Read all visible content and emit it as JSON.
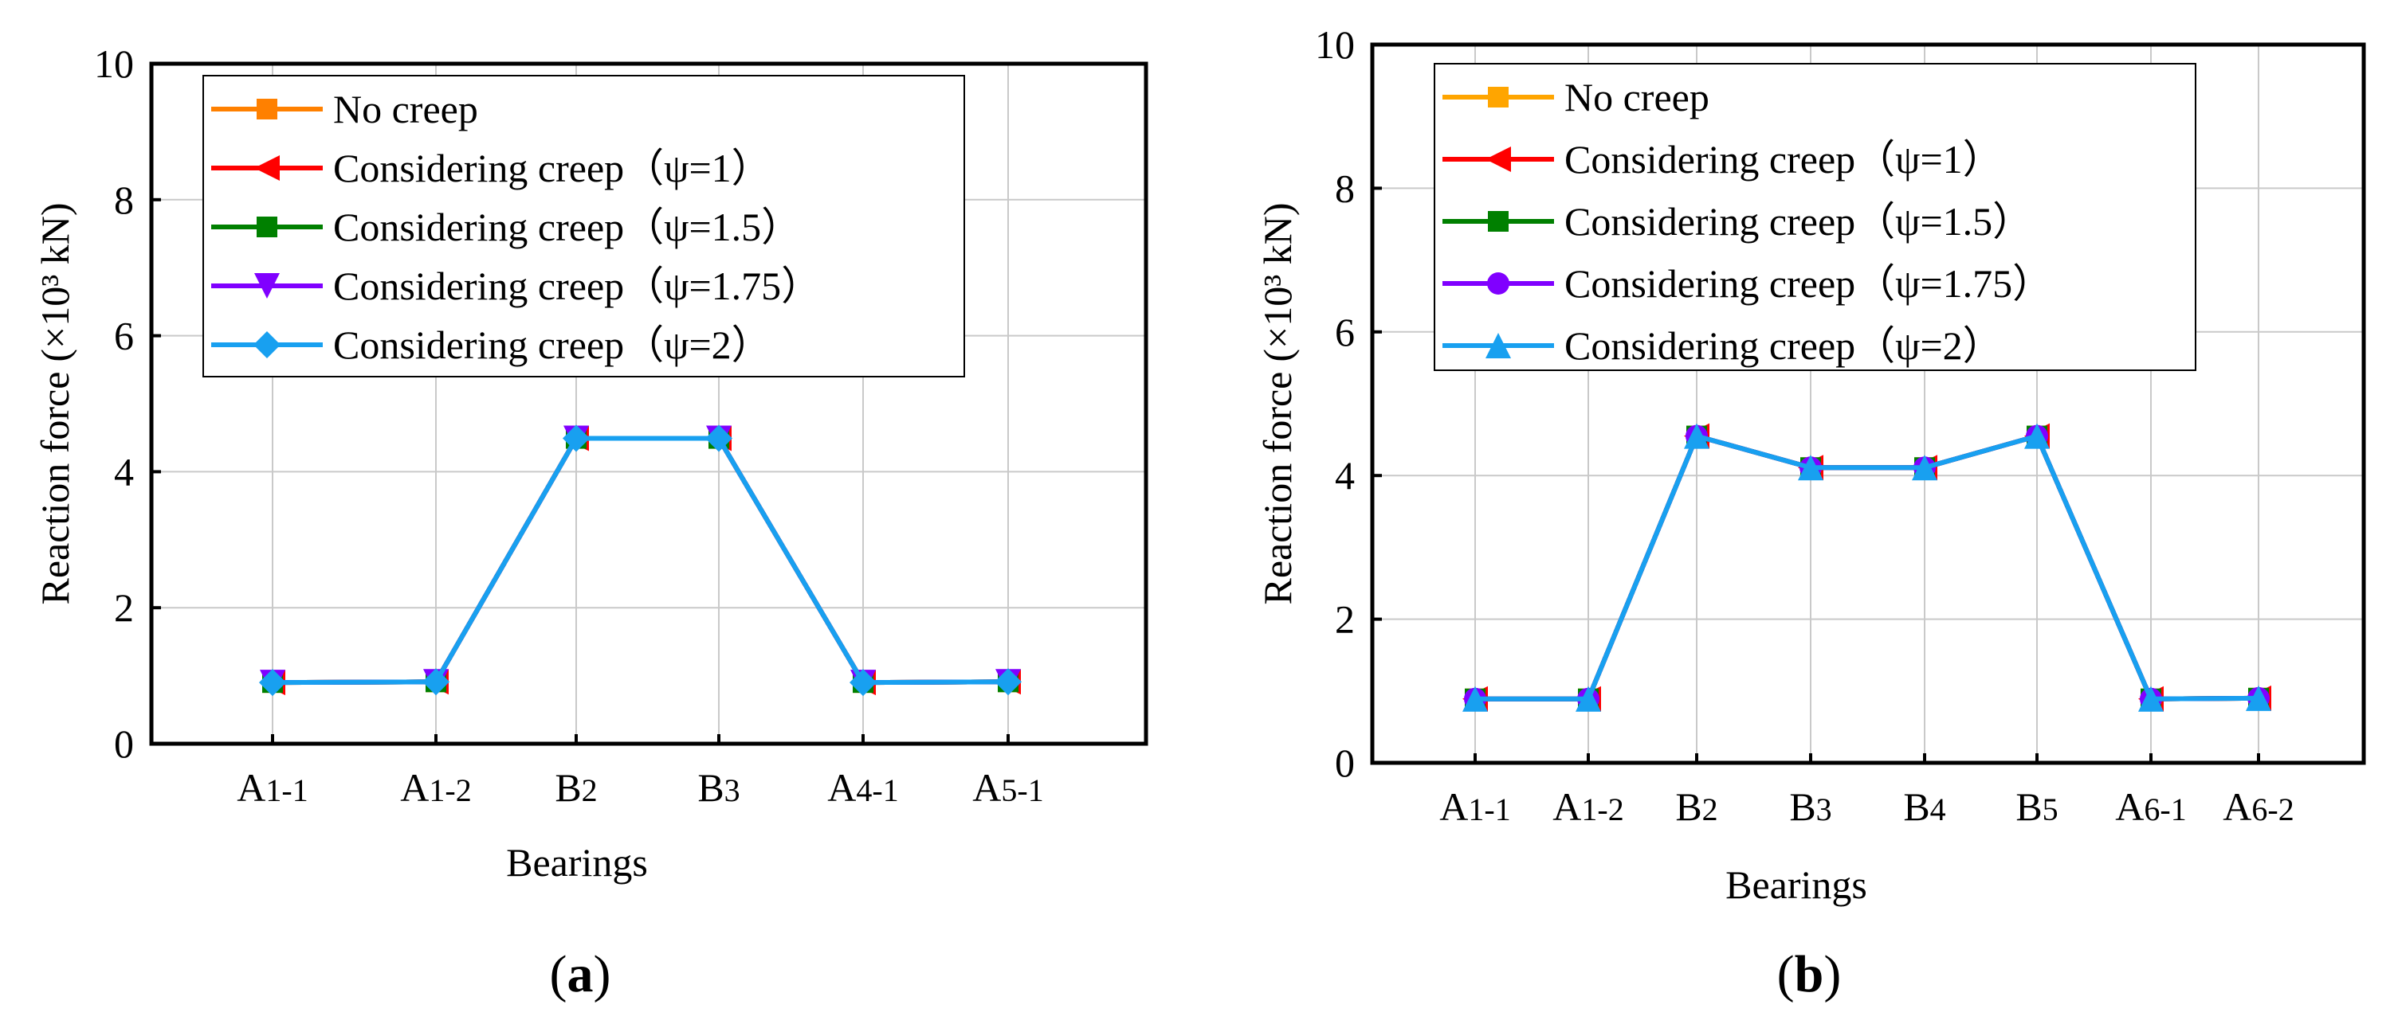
{
  "chart_data": [
    {
      "type": "line",
      "panel_label": "a",
      "xlabel": "Bearings",
      "ylabel": "Reaction force",
      "ylabel_unit": "(×10³ kN)",
      "ylim": [
        0,
        10
      ],
      "yticks": [
        0,
        2,
        4,
        6,
        8,
        10
      ],
      "grid": true,
      "legend_position": "top-left",
      "categories": [
        {
          "base": "A",
          "sub": "1-1"
        },
        {
          "base": "A",
          "sub": "1-2"
        },
        {
          "base": "B",
          "sub": "2"
        },
        {
          "base": "B",
          "sub": "3"
        },
        {
          "base": "A",
          "sub": "4-1"
        },
        {
          "base": "A",
          "sub": "5-1"
        }
      ],
      "series": [
        {
          "name": "No creep",
          "color": "#ff8000",
          "marker": "square",
          "values": [
            0.9,
            0.91,
            4.49,
            4.49,
            0.9,
            0.91
          ]
        },
        {
          "name": "Considering creep（ψ=1）",
          "color": "#ff0000",
          "marker": "triangle-left",
          "values": [
            0.9,
            0.91,
            4.49,
            4.49,
            0.9,
            0.91
          ]
        },
        {
          "name": "Considering creep（ψ=1.5）",
          "color": "#008000",
          "marker": "square",
          "values": [
            0.9,
            0.91,
            4.49,
            4.49,
            0.9,
            0.91
          ]
        },
        {
          "name": "Considering creep（ψ=1.75）",
          "color": "#8000ff",
          "marker": "triangle-down",
          "values": [
            0.9,
            0.91,
            4.49,
            4.49,
            0.9,
            0.91
          ]
        },
        {
          "name": "Considering creep（ψ=2）",
          "color": "#18a0f0",
          "marker": "diamond",
          "values": [
            0.9,
            0.91,
            4.49,
            4.49,
            0.9,
            0.91
          ]
        }
      ]
    },
    {
      "type": "line",
      "panel_label": "b",
      "xlabel": "Bearings",
      "ylabel": "Reaction force",
      "ylabel_unit": "(×10³ kN)",
      "ylim": [
        0,
        10
      ],
      "yticks": [
        0,
        2,
        4,
        6,
        8,
        10
      ],
      "grid": true,
      "legend_position": "top-left",
      "categories": [
        {
          "base": "A",
          "sub": "1-1"
        },
        {
          "base": "A",
          "sub": "1-2"
        },
        {
          "base": "B",
          "sub": "2"
        },
        {
          "base": "B",
          "sub": "3"
        },
        {
          "base": "B",
          "sub": "4"
        },
        {
          "base": "B",
          "sub": "5"
        },
        {
          "base": "A",
          "sub": "6-1"
        },
        {
          "base": "A",
          "sub": "6-2"
        }
      ],
      "series": [
        {
          "name": "No creep",
          "color": "#ffa500",
          "marker": "square",
          "values": [
            0.89,
            0.89,
            4.55,
            4.11,
            4.11,
            4.55,
            0.89,
            0.9
          ]
        },
        {
          "name": "Considering creep（ψ=1）",
          "color": "#ff0000",
          "marker": "triangle-left",
          "values": [
            0.89,
            0.89,
            4.55,
            4.11,
            4.11,
            4.55,
            0.89,
            0.9
          ]
        },
        {
          "name": "Considering creep（ψ=1.5）",
          "color": "#008000",
          "marker": "square",
          "values": [
            0.89,
            0.89,
            4.55,
            4.11,
            4.11,
            4.55,
            0.89,
            0.9
          ]
        },
        {
          "name": "Considering creep（ψ=1.75）",
          "color": "#8000ff",
          "marker": "circle",
          "values": [
            0.89,
            0.89,
            4.55,
            4.11,
            4.11,
            4.55,
            0.89,
            0.9
          ]
        },
        {
          "name": "Considering creep（ψ=2）",
          "color": "#18a0f0",
          "marker": "triangle-up",
          "values": [
            0.89,
            0.89,
            4.55,
            4.11,
            4.11,
            4.55,
            0.89,
            0.9
          ]
        }
      ]
    }
  ]
}
